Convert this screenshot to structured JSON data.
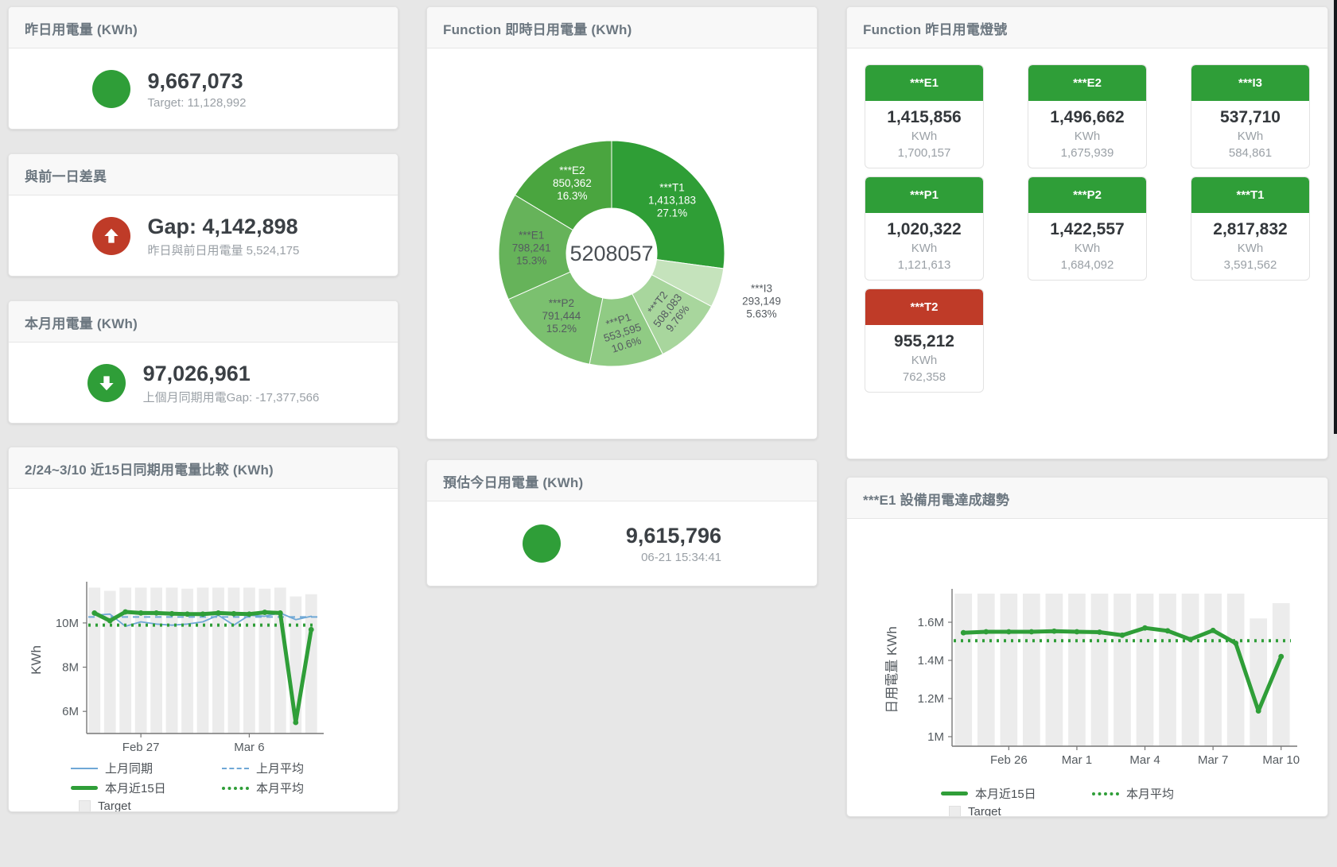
{
  "colors": {
    "green": "#2f9e38",
    "red": "#bf3b28",
    "blue": "#6fa8d6",
    "target_bar": "#ececec"
  },
  "cards": {
    "yesterday": {
      "title": "昨日用電量 (KWh)",
      "value": "9,667,073",
      "subtitle": "Target: 11,128,992"
    },
    "gap": {
      "title": "與前一日差異",
      "value": "Gap: 4,142,898",
      "subtitle": "昨日與前日用電量 5,524,175"
    },
    "month": {
      "title": "本月用電量 (KWh)",
      "value": "97,026,961",
      "subtitle": "上個月同期用電Gap: -17,377,566"
    },
    "estimate": {
      "title": "預估今日用電量 (KWh)",
      "value": "9,615,796",
      "subtitle": "06-21 15:34:41"
    }
  },
  "lights": {
    "title": "Function 昨日用電燈號",
    "tiles": [
      {
        "label": "***E1",
        "value": "1,415,856",
        "unit": "KWh",
        "target": "1,700,157",
        "status": "ok",
        "color": "#2f9e38"
      },
      {
        "label": "***E2",
        "value": "1,496,662",
        "unit": "KWh",
        "target": "1,675,939",
        "status": "ok",
        "color": "#2f9e38"
      },
      {
        "label": "***I3",
        "value": "537,710",
        "unit": "KWh",
        "target": "584,861",
        "status": "ok",
        "color": "#2f9e38"
      },
      {
        "label": "***P1",
        "value": "1,020,322",
        "unit": "KWh",
        "target": "1,121,613",
        "status": "ok",
        "color": "#2f9e38"
      },
      {
        "label": "***P2",
        "value": "1,422,557",
        "unit": "KWh",
        "target": "1,684,092",
        "status": "ok",
        "color": "#2f9e38"
      },
      {
        "label": "***T1",
        "value": "2,817,832",
        "unit": "KWh",
        "target": "3,591,562",
        "status": "ok",
        "color": "#2f9e38"
      },
      {
        "label": "***T2",
        "value": "955,212",
        "unit": "KWh",
        "target": "762,358",
        "status": "alert",
        "color": "#bf3b28"
      }
    ]
  },
  "chart_data": [
    {
      "type": "pie",
      "title": "Function 即時日用電量 (KWh)",
      "center_total": "5208057",
      "slices": [
        {
          "name": "***T1",
          "value": 1413183,
          "pct": "27.1%",
          "color": "#2f9e36",
          "label_color": "#ffffff"
        },
        {
          "name": "***I3",
          "value": 293149,
          "pct": "5.63%",
          "color": "#c5e3bc",
          "label_color": "#555b60",
          "label_outside": true
        },
        {
          "name": "***T2",
          "value": 508083,
          "pct": "9.76%",
          "color": "#a8d69d",
          "label_color": "#555b60",
          "label_rotate": -52
        },
        {
          "name": "***P1",
          "value": 553595,
          "pct": "10.6%",
          "color": "#90cb84",
          "label_color": "#555b60",
          "label_rotate": -18
        },
        {
          "name": "***P2",
          "value": 791444,
          "pct": "15.2%",
          "color": "#7bc06f",
          "label_color": "#555b60"
        },
        {
          "name": "***E1",
          "value": 798241,
          "pct": "15.3%",
          "color": "#66b35a",
          "label_color": "#555b60"
        },
        {
          "name": "***E2",
          "value": 850362,
          "pct": "16.3%",
          "color": "#4aa53f",
          "label_color": "#ffffff"
        }
      ]
    },
    {
      "type": "line+bar",
      "title": "2/24~3/10 近15日同期用電量比較 (KWh)",
      "ylabel": "KWh",
      "ylim": [
        5.0,
        11.65
      ],
      "yticks": [
        {
          "v": 6,
          "label": "6M"
        },
        {
          "v": 8,
          "label": "8M"
        },
        {
          "v": 10,
          "label": "10M"
        }
      ],
      "xticks": [
        {
          "i": 3,
          "label": "Feb 27"
        },
        {
          "i": 10,
          "label": "Mar 6"
        }
      ],
      "series": [
        {
          "name": "上月平均",
          "kind": "avg",
          "style": "dashed",
          "color": "#6fa8d6",
          "value": 10.27
        },
        {
          "name": "上月同期",
          "kind": "line",
          "style": "thin",
          "color": "#6fa8d6",
          "values": [
            10.35,
            10.4,
            9.85,
            10.05,
            9.95,
            9.9,
            9.95,
            10.05,
            10.35,
            9.9,
            10.35,
            10.3,
            10.45,
            10.15,
            10.3
          ]
        },
        {
          "name": "本月平均",
          "kind": "avg",
          "style": "dotted",
          "color": "#2f9e38",
          "value": 9.9
        },
        {
          "name": "本月近15日",
          "kind": "line",
          "style": "thick",
          "color": "#2f9e38",
          "values": [
            10.45,
            10.1,
            10.5,
            10.45,
            10.45,
            10.42,
            10.4,
            10.4,
            10.45,
            10.42,
            10.4,
            10.48,
            10.45,
            5.5,
            9.7
          ]
        },
        {
          "name": "Target",
          "kind": "bar",
          "color": "#ececec",
          "values": [
            11.6,
            11.45,
            11.6,
            11.6,
            11.6,
            11.6,
            11.55,
            11.6,
            11.6,
            11.6,
            11.6,
            11.55,
            11.6,
            11.2,
            11.3
          ]
        }
      ],
      "legend_rows": [
        [
          "上月同期",
          "上月平均"
        ],
        [
          "本月近15日",
          "本月平均"
        ],
        [
          "Target"
        ]
      ]
    },
    {
      "type": "line+bar",
      "title": "***E1 設備用電達成趨勢",
      "ylabel": "日用電量 KWh",
      "ylim": [
        0.95,
        1.75
      ],
      "yticks": [
        {
          "v": 1.0,
          "label": "1M"
        },
        {
          "v": 1.2,
          "label": "1.2M"
        },
        {
          "v": 1.4,
          "label": "1.4M"
        },
        {
          "v": 1.6,
          "label": "1.6M"
        }
      ],
      "xticks": [
        {
          "i": 2,
          "label": "Feb 26"
        },
        {
          "i": 5,
          "label": "Mar 1"
        },
        {
          "i": 8,
          "label": "Mar 4"
        },
        {
          "i": 11,
          "label": "Mar 7"
        },
        {
          "i": 14,
          "label": "Mar 10"
        }
      ],
      "series": [
        {
          "name": "本月平均",
          "kind": "avg",
          "style": "dotted",
          "color": "#2f9e38",
          "value": 1.503
        },
        {
          "name": "本月近15日",
          "kind": "line",
          "style": "thick",
          "color": "#2f9e38",
          "values": [
            1.545,
            1.55,
            1.55,
            1.55,
            1.553,
            1.55,
            1.548,
            1.532,
            1.57,
            1.555,
            1.51,
            1.557,
            1.49,
            1.135,
            1.42
          ]
        },
        {
          "name": "Target",
          "kind": "bar",
          "color": "#ececec",
          "values": [
            1.75,
            1.75,
            1.75,
            1.75,
            1.75,
            1.75,
            1.75,
            1.75,
            1.75,
            1.75,
            1.75,
            1.75,
            1.75,
            1.62,
            1.7
          ]
        }
      ],
      "legend_rows": [
        [
          "本月近15日",
          "本月平均"
        ],
        [
          "Target"
        ]
      ]
    }
  ]
}
